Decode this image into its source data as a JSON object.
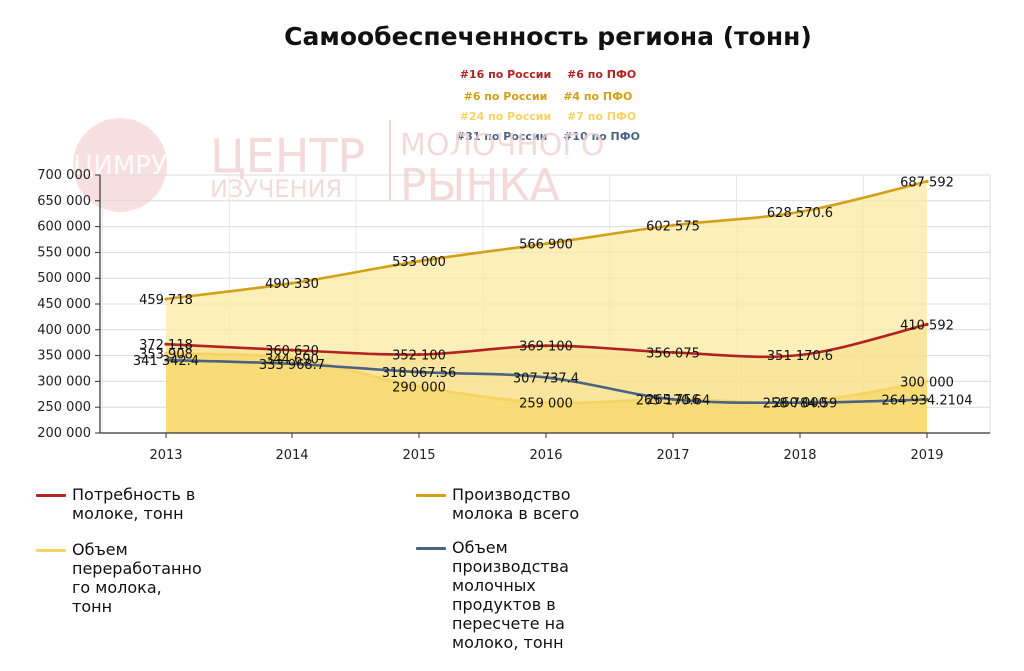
{
  "chart_data": {
    "type": "line",
    "title": "Самообеспеченность региона (тонн)",
    "categories": [
      "2013",
      "2014",
      "2015",
      "2016",
      "2017",
      "2018",
      "2019"
    ],
    "y_ticks": [
      "700 000",
      "650 000",
      "600 000",
      "550 000",
      "500 000",
      "450 000",
      "400 000",
      "350 000",
      "300 000",
      "250 000",
      "200 000"
    ],
    "ylim": [
      200000,
      700000
    ],
    "grid": true,
    "legend_position": "bottom-left",
    "series": [
      {
        "name": "Потребность в молоке, тонн",
        "color": "#b22222",
        "values": [
          372118,
          360620,
          352100,
          369100,
          356075,
          351170.6,
          410592
        ],
        "labels": [
          "372 118",
          "360 620",
          "352 100",
          "369 100",
          "356 075",
          "351 170.6",
          "410 592"
        ]
      },
      {
        "name": "Производство молока в всего",
        "color": "#d4a017",
        "values": [
          459718,
          490330,
          533000,
          566900,
          602575,
          628570.6,
          687592
        ],
        "labels": [
          "459 718",
          "490 330",
          "533 000",
          "566 900",
          "602 575",
          "628 570.6",
          "687 592"
        ]
      },
      {
        "name": "Объем переработанного молока, тонн",
        "color": "#f6d365",
        "values": [
          353908,
          344690,
          290000,
          259000,
          265756,
          260000,
          300000
        ],
        "labels": [
          "353 908",
          "344 690",
          "290 000",
          "259 000",
          "265 756",
          "260 000",
          "300 000"
        ]
      },
      {
        "name": "Объем производства молочных продуктов в пересчете на молоко, тонн",
        "color": "#4a6383",
        "values": [
          341342.4,
          333968.7,
          318067.56,
          307737.4,
          265170.64,
          258784.59,
          264934.2104
        ],
        "labels": [
          "341 342.4",
          "333 968.7",
          "318 067.56",
          "307 737.4",
          "265 170.64",
          "258 784.59",
          "264 934.2104"
        ]
      }
    ]
  },
  "rankings": [
    {
      "russia": "#16 по России",
      "pfo": "#6 по ПФО",
      "color": "#b22222"
    },
    {
      "russia": "#6 по России",
      "pfo": "#4 по ПФО",
      "color": "#d4a017"
    },
    {
      "russia": "#24 по России",
      "pfo": "#7 по ПФО",
      "color": "#f6d365"
    },
    {
      "russia": "#31 по России",
      "pfo": "#10 по ПФО",
      "color": "#4a6383"
    }
  ],
  "legend": [
    "Потребность в\nмолоке, тонн",
    "Производство\nмолока в всего",
    "Объем\nпереработанно\nго молока,\nтонн",
    "Объем\nпроизводства\nмолочных\nпродуктов в\nпересчете на\nмолоко, тонн"
  ],
  "watermark": {
    "logo": "ЦИМРУ",
    "line1": "ЦЕНТР",
    "line2": "ИЗУЧЕНИЯ",
    "line3": "МОЛОЧНОГО",
    "line4": "РЫНКА"
  }
}
